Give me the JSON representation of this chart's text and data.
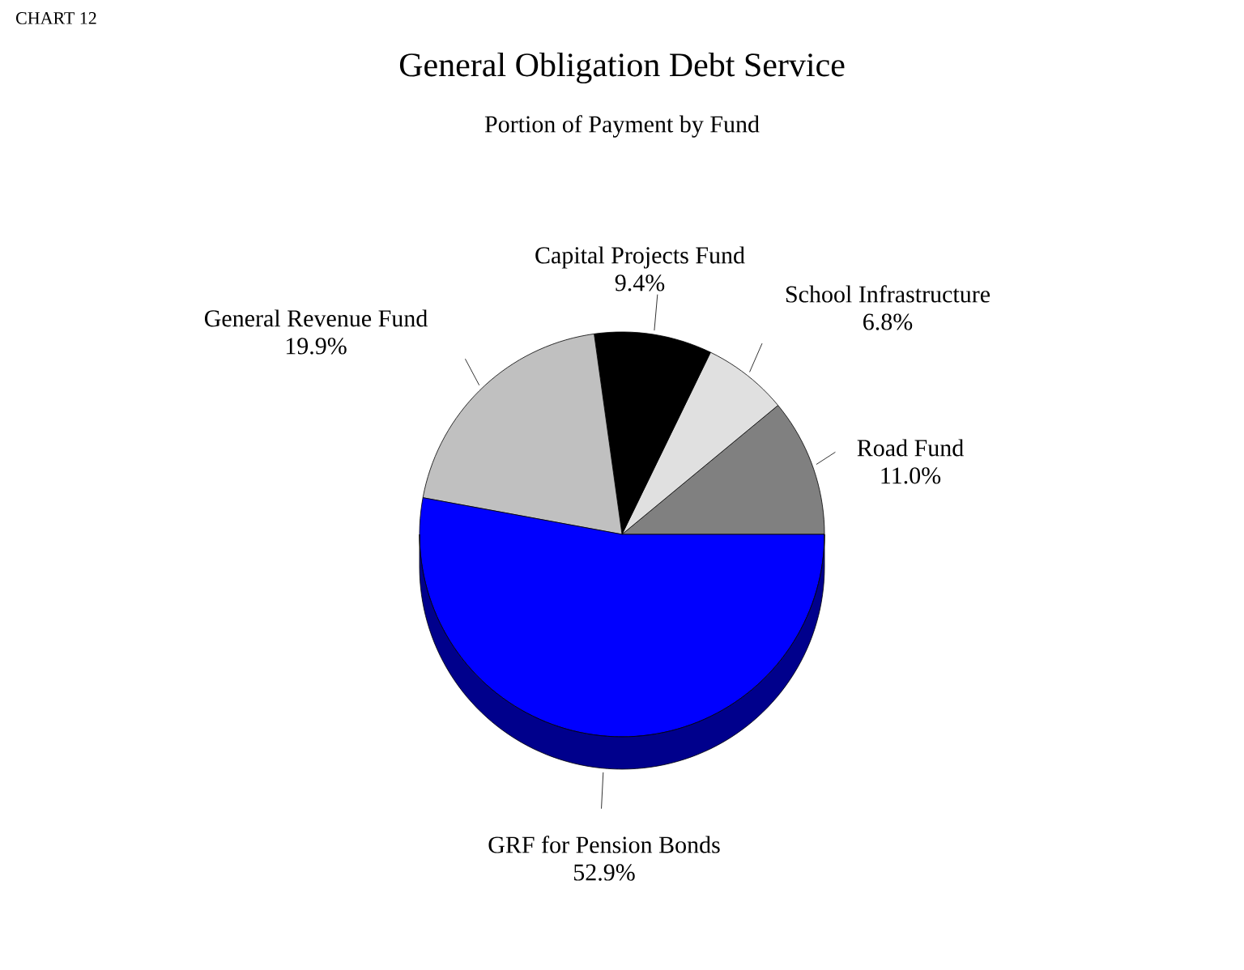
{
  "chart_data": {
    "type": "pie",
    "title": "General Obligation Debt Service",
    "subtitle": "Portion of Payment by Fund",
    "annotations": [
      "CHART 12"
    ],
    "categories": [
      "Road Fund",
      "School Infrastructure",
      "Capital Projects Fund",
      "General Revenue Fund",
      "GRF for Pension Bonds"
    ],
    "values": [
      11.0,
      6.8,
      9.4,
      19.9,
      52.9
    ],
    "colors": [
      "#808080",
      "#e0e0e0",
      "#000000",
      "#c0c0c0",
      "#0000ff"
    ],
    "value_labels": [
      "11.0%",
      "6.8%",
      "9.4%",
      "19.9%",
      "52.9%"
    ]
  }
}
